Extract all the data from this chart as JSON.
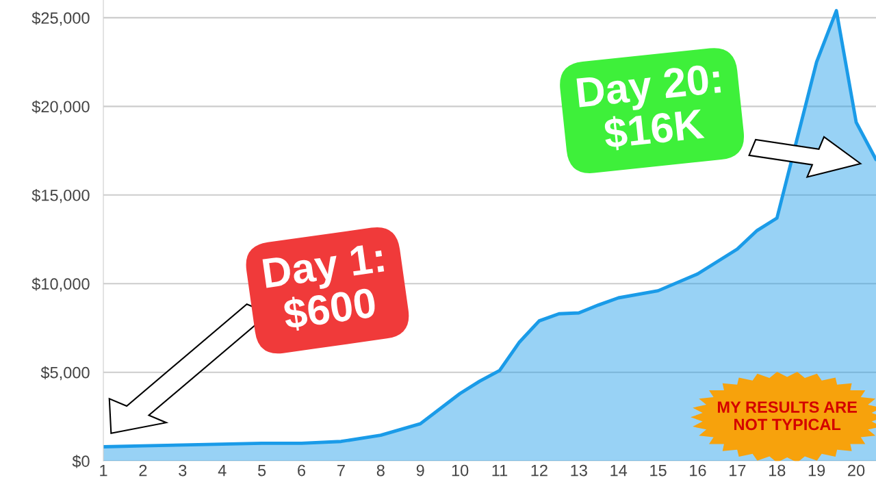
{
  "chart_data": {
    "type": "area",
    "x": [
      1,
      2,
      3,
      4,
      5,
      6,
      7,
      8,
      9,
      10,
      10.5,
      11,
      11.5,
      12,
      12.5,
      13,
      13.5,
      14,
      15,
      16,
      17,
      17.5,
      18,
      19,
      19.5,
      20,
      20.5
    ],
    "series": [
      {
        "color": "#1a9be8",
        "values": [
          800,
          850,
          900,
          950,
          1000,
          1000,
          1100,
          1450,
          2100,
          3800,
          4500,
          5100,
          6700,
          7900,
          8300,
          8350,
          8800,
          9200,
          9600,
          10550,
          11950,
          13000,
          13700,
          22500,
          25400,
          19100,
          17000
        ]
      }
    ],
    "xlim": [
      1,
      20.5
    ],
    "ylim": [
      0,
      26000
    ],
    "xticks": [
      1,
      2,
      3,
      4,
      5,
      6,
      7,
      8,
      9,
      10,
      11,
      12,
      13,
      14,
      15,
      16,
      17,
      18,
      19,
      20
    ],
    "yticks": [
      {
        "value": 0,
        "label": "$0"
      },
      {
        "value": 5000,
        "label": "$5,000"
      },
      {
        "value": 10000,
        "label": "$10,000"
      },
      {
        "value": 15000,
        "label": "$15,000"
      },
      {
        "value": 20000,
        "label": "$20,000"
      },
      {
        "value": 25000,
        "label": "$25,000"
      }
    ],
    "grid": "y",
    "annotations": [
      "Day 1:\n$600",
      "Day 20:\n$16K",
      "MY RESULTS ARE\nNOT TYPICAL"
    ]
  }
}
